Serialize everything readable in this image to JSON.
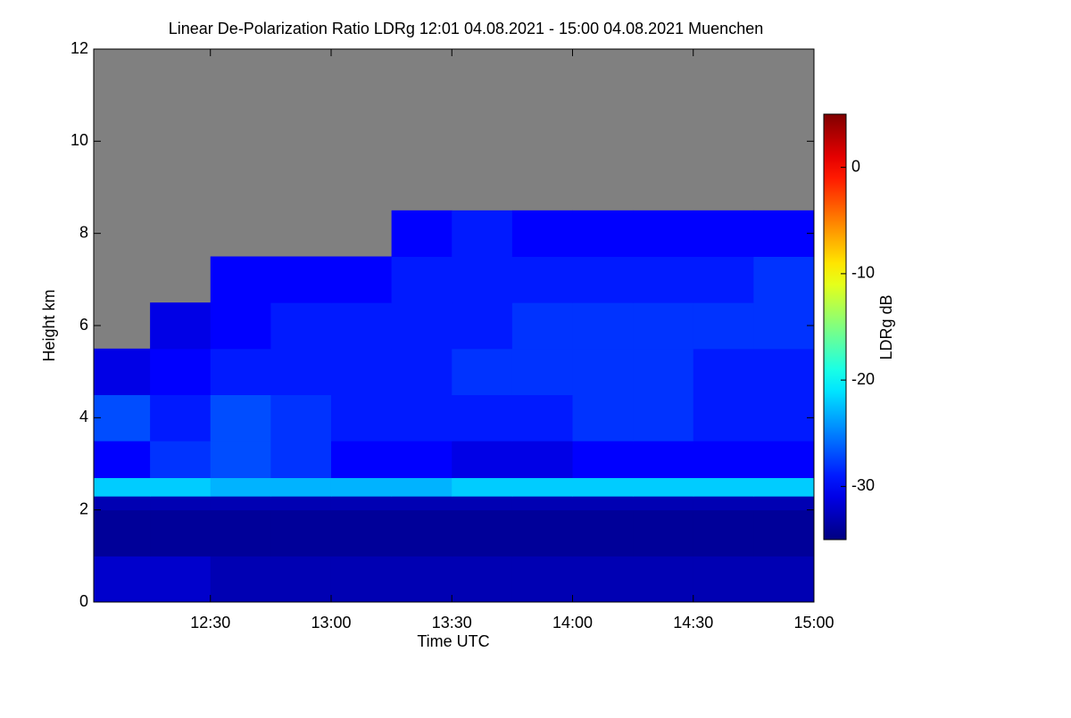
{
  "chart_data": {
    "type": "heatmap",
    "title": "Linear De-Polarization Ratio LDRg   12:01 04.08.2021 - 15:00 04.08.2021 Muenchen",
    "xlabel": "Time UTC",
    "ylabel": "Height km",
    "colorbar_label": "LDRg dB",
    "xlim": [
      "12:01",
      "15:00"
    ],
    "xticks": [
      "12:30",
      "13:00",
      "13:30",
      "14:00",
      "14:30",
      "15:00"
    ],
    "ylim": [
      0,
      12
    ],
    "yticks": [
      0,
      2,
      4,
      6,
      8,
      10,
      12
    ],
    "zlim": [
      -35,
      5
    ],
    "zticks": [
      0,
      -10,
      -20,
      -30
    ],
    "colormap": "jet",
    "missing_color": "#808080",
    "x_bins": [
      "12:01",
      "12:15",
      "12:30",
      "12:45",
      "13:00",
      "13:15",
      "13:30",
      "13:45",
      "14:00",
      "14:15",
      "14:30",
      "14:45",
      "15:00"
    ],
    "y_bins": [
      0,
      1,
      2,
      2.3,
      2.7,
      3.5,
      4.5,
      5.5,
      6.5,
      7.5,
      8.5,
      12
    ],
    "z": [
      [
        -32,
        -32,
        -33,
        -33,
        -33,
        -33,
        -33,
        -33,
        -33,
        -33,
        -33,
        -33
      ],
      [
        -34,
        -34,
        -34,
        -34,
        -34,
        -34,
        -34,
        -34,
        -34,
        -34,
        -34,
        -34
      ],
      [
        -33,
        -33,
        -33,
        -33,
        -33,
        -33,
        -33,
        -33,
        -33,
        -33,
        -33,
        -33
      ],
      [
        -22,
        -22,
        -23,
        -23,
        -23,
        -23,
        -22,
        -22,
        -22,
        -22,
        -22,
        -22
      ],
      [
        -30,
        -28,
        -27,
        -28,
        -30,
        -30,
        -31,
        -31,
        -30,
        -30,
        -30,
        -30
      ],
      [
        -27,
        -29,
        -27,
        -28,
        -29,
        -29,
        -29,
        -29,
        -28,
        -28,
        -29,
        -29
      ],
      [
        -31,
        -30,
        -29,
        -29,
        -29,
        -29,
        -28,
        -28,
        -28,
        -28,
        -29,
        -29
      ],
      [
        null,
        -31,
        -30,
        -29,
        -29,
        -29,
        -29,
        -28,
        -28,
        -28,
        -28,
        -28
      ],
      [
        null,
        null,
        -30,
        -30,
        -30,
        -29,
        -29,
        -29,
        -29,
        -29,
        -29,
        -28
      ],
      [
        null,
        null,
        null,
        null,
        null,
        -30,
        -29,
        -30,
        -30,
        -30,
        -30,
        -30
      ],
      [
        null,
        null,
        null,
        null,
        null,
        null,
        null,
        null,
        null,
        null,
        null,
        null
      ]
    ]
  }
}
